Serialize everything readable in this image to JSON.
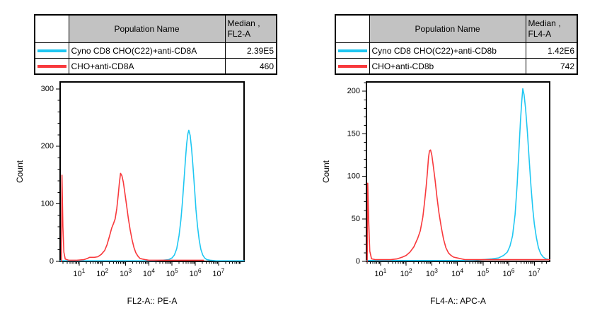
{
  "panels": [
    {
      "table": {
        "population_header": "Population Name",
        "median_header_line1": "Median ,",
        "median_header_line2": "FL2-A",
        "rows": [
          {
            "color": "#1fc7f2",
            "name": "Cyno CD8 CHO(C22)+anti-CD8A",
            "median": "2.39E5"
          },
          {
            "color": "#f8393c",
            "name": "CHO+anti-CD8A",
            "median": "460"
          }
        ]
      }
    },
    {
      "table": {
        "population_header": "Population Name",
        "median_header_line1": "Median ,",
        "median_header_line2": "FL4-A",
        "rows": [
          {
            "color": "#1fc7f2",
            "name": "Cyno CD8 CHO(C22)+anti-CD8b",
            "median": "1.42E6"
          },
          {
            "color": "#f8393c",
            "name": "CHO+anti-CD8b",
            "median": "742"
          }
        ]
      }
    }
  ],
  "chart_data": [
    {
      "type": "line",
      "title": "",
      "xlabel": "FL2-A:: PE-A",
      "ylabel": "Count",
      "x_scale": "log10",
      "x_log_range": [
        0.18,
        8.1
      ],
      "x_major_tick_exponents": [
        1,
        2,
        3,
        4,
        5,
        6,
        7
      ],
      "ylim": [
        0,
        312
      ],
      "y_major_ticks": [
        0,
        100,
        200,
        300
      ],
      "y_minor_step": 20,
      "grid": false,
      "legend_position": "table-above",
      "series": [
        {
          "name": "Cyno CD8 CHO(C22)+anti-CD8A",
          "color": "#1fc7f2",
          "median": "2.39E5",
          "points": [
            [
              0.18,
              1
            ],
            [
              1.5,
              1
            ],
            [
              3.0,
              1
            ],
            [
              4.2,
              1
            ],
            [
              4.6,
              2
            ],
            [
              4.85,
              3
            ],
            [
              5.0,
              6
            ],
            [
              5.1,
              11
            ],
            [
              5.2,
              22
            ],
            [
              5.3,
              45
            ],
            [
              5.38,
              72
            ],
            [
              5.45,
              105
            ],
            [
              5.52,
              145
            ],
            [
              5.58,
              180
            ],
            [
              5.63,
              205
            ],
            [
              5.68,
              222
            ],
            [
              5.72,
              228
            ],
            [
              5.78,
              219
            ],
            [
              5.84,
              196
            ],
            [
              5.9,
              165
            ],
            [
              5.97,
              125
            ],
            [
              6.03,
              90
            ],
            [
              6.1,
              60
            ],
            [
              6.17,
              37
            ],
            [
              6.24,
              21
            ],
            [
              6.32,
              11
            ],
            [
              6.4,
              6
            ],
            [
              6.5,
              3
            ],
            [
              6.65,
              2
            ],
            [
              6.9,
              1
            ],
            [
              7.5,
              1
            ],
            [
              8.1,
              1
            ]
          ]
        },
        {
          "name": "CHO+anti-CD8A",
          "color": "#f8393c",
          "median": "460",
          "points": [
            [
              0.24,
              0
            ],
            [
              0.26,
              150
            ],
            [
              0.3,
              60
            ],
            [
              0.34,
              16
            ],
            [
              0.4,
              4
            ],
            [
              0.55,
              2
            ],
            [
              0.9,
              2
            ],
            [
              1.2,
              3
            ],
            [
              1.35,
              5
            ],
            [
              1.45,
              7
            ],
            [
              1.65,
              7
            ],
            [
              1.8,
              8
            ],
            [
              1.95,
              12
            ],
            [
              2.1,
              19
            ],
            [
              2.2,
              29
            ],
            [
              2.3,
              43
            ],
            [
              2.4,
              58
            ],
            [
              2.48,
              66
            ],
            [
              2.55,
              74
            ],
            [
              2.62,
              92
            ],
            [
              2.68,
              115
            ],
            [
              2.73,
              136
            ],
            [
              2.78,
              153
            ],
            [
              2.84,
              149
            ],
            [
              2.9,
              138
            ],
            [
              2.97,
              118
            ],
            [
              3.05,
              95
            ],
            [
              3.12,
              74
            ],
            [
              3.2,
              54
            ],
            [
              3.28,
              37
            ],
            [
              3.36,
              24
            ],
            [
              3.44,
              15
            ],
            [
              3.53,
              9
            ],
            [
              3.62,
              5
            ],
            [
              3.72,
              4
            ],
            [
              3.85,
              3
            ],
            [
              4.0,
              2
            ],
            [
              4.5,
              2
            ],
            [
              5.2,
              2
            ],
            [
              6.0,
              2
            ],
            [
              6.35,
              2
            ]
          ]
        }
      ]
    },
    {
      "type": "line",
      "title": "",
      "xlabel": "FL4-A:: APC-A",
      "ylabel": "Count",
      "x_scale": "log10",
      "x_log_range": [
        0.45,
        7.6
      ],
      "x_major_tick_exponents": [
        1,
        2,
        3,
        4,
        5,
        6,
        7
      ],
      "ylim": [
        0,
        211
      ],
      "y_major_ticks": [
        0,
        50,
        100,
        150,
        200
      ],
      "y_minor_step": 10,
      "grid": false,
      "legend_position": "table-above",
      "series": [
        {
          "name": "Cyno CD8 CHO(C22)+anti-CD8b",
          "color": "#1fc7f2",
          "median": "1.42E6",
          "points": [
            [
              0.45,
              1
            ],
            [
              2.0,
              1
            ],
            [
              3.5,
              1
            ],
            [
              4.6,
              1
            ],
            [
              5.0,
              2
            ],
            [
              5.35,
              3
            ],
            [
              5.6,
              4
            ],
            [
              5.8,
              7
            ],
            [
              5.95,
              11
            ],
            [
              6.05,
              18
            ],
            [
              6.15,
              30
            ],
            [
              6.25,
              55
            ],
            [
              6.33,
              90
            ],
            [
              6.4,
              130
            ],
            [
              6.46,
              165
            ],
            [
              6.51,
              188
            ],
            [
              6.55,
              203
            ],
            [
              6.6,
              196
            ],
            [
              6.66,
              180
            ],
            [
              6.73,
              152
            ],
            [
              6.8,
              120
            ],
            [
              6.87,
              88
            ],
            [
              6.94,
              62
            ],
            [
              7.0,
              44
            ],
            [
              7.08,
              28
            ],
            [
              7.16,
              16
            ],
            [
              7.25,
              9
            ],
            [
              7.35,
              5
            ],
            [
              7.45,
              3
            ],
            [
              7.6,
              2
            ]
          ]
        },
        {
          "name": "CHO+anti-CD8b",
          "color": "#f8393c",
          "median": "742",
          "points": [
            [
              0.48,
              0
            ],
            [
              0.5,
              92
            ],
            [
              0.54,
              45
            ],
            [
              0.58,
              12
            ],
            [
              0.65,
              3
            ],
            [
              0.8,
              2
            ],
            [
              1.1,
              2
            ],
            [
              1.4,
              2
            ],
            [
              1.65,
              3
            ],
            [
              1.85,
              5
            ],
            [
              2.0,
              7
            ],
            [
              2.15,
              11
            ],
            [
              2.3,
              17
            ],
            [
              2.45,
              27
            ],
            [
              2.55,
              36
            ],
            [
              2.65,
              52
            ],
            [
              2.72,
              70
            ],
            [
              2.78,
              88
            ],
            [
              2.83,
              105
            ],
            [
              2.87,
              122
            ],
            [
              2.91,
              130
            ],
            [
              2.95,
              131
            ],
            [
              3.0,
              125
            ],
            [
              3.06,
              112
            ],
            [
              3.13,
              95
            ],
            [
              3.2,
              76
            ],
            [
              3.28,
              57
            ],
            [
              3.37,
              40
            ],
            [
              3.46,
              26
            ],
            [
              3.55,
              16
            ],
            [
              3.65,
              10
            ],
            [
              3.75,
              7
            ],
            [
              3.85,
              5
            ],
            [
              4.0,
              4
            ],
            [
              4.15,
              3
            ],
            [
              4.3,
              2
            ],
            [
              5.0,
              2
            ],
            [
              6.0,
              2
            ],
            [
              7.0,
              2
            ],
            [
              7.6,
              2
            ]
          ]
        }
      ]
    }
  ]
}
